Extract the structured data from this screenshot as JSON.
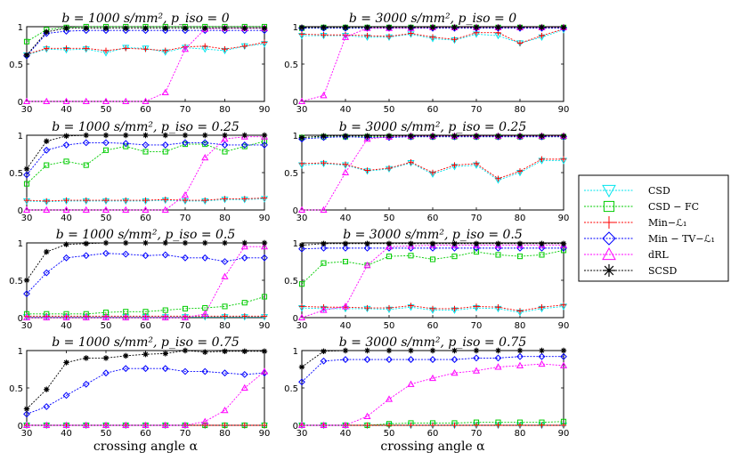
{
  "figure_legend": [
    {
      "label": "CSD",
      "color": "#00e5ee",
      "marker": "triangle-down"
    },
    {
      "label": "CSD − FC",
      "color": "#00cc00",
      "marker": "square"
    },
    {
      "label": "Min−ℒ₁",
      "color": "#ff0000",
      "marker": "plus"
    },
    {
      "label": "Min − TV−ℒ₁",
      "color": "#0000ff",
      "marker": "diamond"
    },
    {
      "label": "dRL",
      "color": "#ff00ff",
      "marker": "triangle-up"
    },
    {
      "label": "SCSD",
      "color": "#000000",
      "marker": "star"
    }
  ],
  "chart_data": [
    {
      "type": "line",
      "title": "b = 1000 s/mm², p_iso = 0",
      "xlabel": "",
      "ylabel": "",
      "xlim": [
        30,
        90
      ],
      "ylim": [
        0,
        1
      ],
      "x": [
        30,
        35,
        40,
        45,
        50,
        55,
        60,
        65,
        70,
        75,
        80,
        85,
        90
      ],
      "series": [
        {
          "name": "CSD",
          "values": [
            0.62,
            0.7,
            0.69,
            0.7,
            0.65,
            0.72,
            0.71,
            0.66,
            0.72,
            0.7,
            0.68,
            0.74,
            0.77
          ]
        },
        {
          "name": "CSD − FC",
          "values": [
            0.8,
            0.96,
            0.99,
            1.0,
            1.0,
            1.0,
            1.0,
            1.0,
            1.0,
            1.0,
            1.0,
            1.0,
            1.0
          ]
        },
        {
          "name": "Min−ℒ₁",
          "values": [
            0.63,
            0.71,
            0.71,
            0.71,
            0.68,
            0.71,
            0.7,
            0.68,
            0.73,
            0.74,
            0.7,
            0.74,
            0.79
          ]
        },
        {
          "name": "Min − TV−ℒ₁",
          "values": [
            0.61,
            0.91,
            0.94,
            0.95,
            0.95,
            0.95,
            0.95,
            0.95,
            0.95,
            0.95,
            0.95,
            0.95,
            0.95
          ]
        },
        {
          "name": "dRL",
          "values": [
            0.0,
            0.0,
            0.0,
            0.0,
            0.0,
            0.0,
            0.0,
            0.12,
            0.7,
            0.97,
            0.98,
            0.98,
            0.98
          ]
        },
        {
          "name": "SCSD",
          "values": [
            0.62,
            0.93,
            0.98,
            0.98,
            0.98,
            0.98,
            0.98,
            0.98,
            0.98,
            0.98,
            0.98,
            0.98,
            0.98
          ]
        }
      ]
    },
    {
      "type": "line",
      "title": "b = 3000 s/mm², p_iso = 0",
      "xlabel": "",
      "ylabel": "",
      "xlim": [
        30,
        90
      ],
      "ylim": [
        0,
        1
      ],
      "x": [
        30,
        35,
        40,
        45,
        50,
        55,
        60,
        65,
        70,
        75,
        80,
        85,
        90
      ],
      "series": [
        {
          "name": "CSD",
          "values": [
            0.88,
            0.88,
            0.88,
            0.86,
            0.86,
            0.9,
            0.84,
            0.82,
            0.9,
            0.88,
            0.78,
            0.86,
            0.96
          ]
        },
        {
          "name": "CSD − FC",
          "values": [
            0.98,
            0.99,
            0.99,
            0.99,
            0.99,
            0.99,
            0.99,
            0.99,
            0.99,
            0.99,
            0.99,
            0.99,
            0.99
          ]
        },
        {
          "name": "Min−ℒ₁",
          "values": [
            0.9,
            0.89,
            0.89,
            0.88,
            0.87,
            0.91,
            0.86,
            0.83,
            0.92,
            0.92,
            0.78,
            0.88,
            0.97
          ]
        },
        {
          "name": "Min − TV−ℒ₁",
          "values": [
            0.98,
            0.98,
            0.98,
            0.98,
            0.98,
            0.98,
            0.98,
            0.98,
            0.98,
            0.98,
            0.98,
            0.98,
            0.98
          ]
        },
        {
          "name": "dRL",
          "values": [
            0.0,
            0.08,
            0.86,
            0.98,
            0.98,
            0.98,
            0.99,
            0.99,
            0.99,
            0.99,
            0.99,
            0.99,
            0.99
          ]
        },
        {
          "name": "SCSD",
          "values": [
            0.99,
            0.99,
            0.99,
            0.99,
            0.99,
            0.99,
            0.99,
            0.99,
            0.99,
            0.99,
            0.99,
            0.99,
            0.99
          ]
        }
      ]
    },
    {
      "type": "line",
      "title": "b = 1000 s/mm², p_iso = 0.25",
      "xlabel": "",
      "ylabel": "",
      "xlim": [
        30,
        90
      ],
      "ylim": [
        0,
        1
      ],
      "x": [
        30,
        35,
        40,
        45,
        50,
        55,
        60,
        65,
        70,
        75,
        80,
        85,
        90
      ],
      "series": [
        {
          "name": "CSD",
          "values": [
            0.12,
            0.11,
            0.12,
            0.12,
            0.12,
            0.12,
            0.12,
            0.13,
            0.12,
            0.12,
            0.14,
            0.14,
            0.15
          ]
        },
        {
          "name": "CSD − FC",
          "values": [
            0.35,
            0.6,
            0.65,
            0.6,
            0.8,
            0.85,
            0.78,
            0.78,
            0.88,
            0.88,
            0.78,
            0.85,
            0.92
          ]
        },
        {
          "name": "Min−ℒ₁",
          "values": [
            0.13,
            0.12,
            0.13,
            0.13,
            0.13,
            0.13,
            0.13,
            0.14,
            0.13,
            0.13,
            0.15,
            0.15,
            0.16
          ]
        },
        {
          "name": "Min − TV−ℒ₁",
          "values": [
            0.47,
            0.8,
            0.87,
            0.9,
            0.9,
            0.89,
            0.87,
            0.87,
            0.9,
            0.9,
            0.87,
            0.87,
            0.87
          ]
        },
        {
          "name": "dRL",
          "values": [
            0.0,
            0.0,
            0.0,
            0.0,
            0.0,
            0.0,
            0.0,
            0.0,
            0.2,
            0.7,
            0.95,
            0.98,
            0.98
          ]
        },
        {
          "name": "SCSD",
          "values": [
            0.55,
            0.92,
            0.99,
            1.0,
            1.0,
            1.0,
            1.0,
            1.0,
            1.0,
            1.0,
            1.0,
            1.0,
            1.0
          ]
        }
      ]
    },
    {
      "type": "line",
      "title": "b = 3000 s/mm², p_iso = 0.25",
      "xlabel": "",
      "ylabel": "",
      "xlim": [
        30,
        90
      ],
      "ylim": [
        0,
        1
      ],
      "x": [
        30,
        35,
        40,
        45,
        50,
        55,
        60,
        65,
        70,
        75,
        80,
        85,
        90
      ],
      "series": [
        {
          "name": "CSD",
          "values": [
            0.6,
            0.62,
            0.6,
            0.52,
            0.55,
            0.63,
            0.48,
            0.58,
            0.6,
            0.4,
            0.5,
            0.66,
            0.66
          ]
        },
        {
          "name": "CSD − FC",
          "values": [
            0.97,
            0.98,
            0.98,
            0.98,
            0.98,
            0.98,
            0.98,
            0.98,
            0.98,
            0.98,
            0.98,
            0.98,
            0.98
          ]
        },
        {
          "name": "Min−ℒ₁",
          "values": [
            0.62,
            0.63,
            0.61,
            0.53,
            0.56,
            0.64,
            0.5,
            0.6,
            0.62,
            0.42,
            0.52,
            0.68,
            0.68
          ]
        },
        {
          "name": "Min − TV−ℒ₁",
          "values": [
            0.95,
            0.97,
            0.98,
            0.97,
            0.97,
            0.98,
            0.98,
            0.98,
            0.98,
            0.98,
            0.98,
            0.98,
            0.98
          ]
        },
        {
          "name": "dRL",
          "values": [
            0.0,
            0.0,
            0.5,
            0.95,
            0.98,
            0.99,
            0.99,
            0.99,
            0.99,
            0.99,
            0.99,
            0.99,
            0.99
          ]
        },
        {
          "name": "SCSD",
          "values": [
            0.97,
            0.99,
            0.99,
            0.99,
            0.99,
            0.99,
            0.99,
            0.99,
            0.99,
            0.99,
            0.99,
            0.99,
            0.99
          ]
        }
      ]
    },
    {
      "type": "line",
      "title": "b = 1000 s/mm², p_iso = 0.5",
      "xlabel": "",
      "ylabel": "",
      "xlim": [
        30,
        90
      ],
      "ylim": [
        0,
        1
      ],
      "x": [
        30,
        35,
        40,
        45,
        50,
        55,
        60,
        65,
        70,
        75,
        80,
        85,
        90
      ],
      "series": [
        {
          "name": "CSD",
          "values": [
            0.01,
            0.01,
            0.01,
            0.01,
            0.01,
            0.01,
            0.01,
            0.01,
            0.01,
            0.01,
            0.01,
            0.01,
            0.01
          ]
        },
        {
          "name": "CSD − FC",
          "values": [
            0.05,
            0.05,
            0.05,
            0.05,
            0.07,
            0.08,
            0.08,
            0.1,
            0.12,
            0.13,
            0.15,
            0.2,
            0.28
          ]
        },
        {
          "name": "Min−ℒ₁",
          "values": [
            0.02,
            0.02,
            0.02,
            0.02,
            0.02,
            0.02,
            0.02,
            0.02,
            0.02,
            0.02,
            0.02,
            0.02,
            0.02
          ]
        },
        {
          "name": "Min − TV−ℒ₁",
          "values": [
            0.32,
            0.6,
            0.8,
            0.83,
            0.86,
            0.85,
            0.83,
            0.84,
            0.8,
            0.8,
            0.75,
            0.8,
            0.8
          ]
        },
        {
          "name": "dRL",
          "values": [
            0.0,
            0.0,
            0.0,
            0.0,
            0.0,
            0.0,
            0.0,
            0.0,
            0.0,
            0.05,
            0.55,
            0.95,
            0.95
          ]
        },
        {
          "name": "SCSD",
          "values": [
            0.5,
            0.88,
            0.98,
            0.99,
            1.0,
            1.0,
            1.0,
            1.0,
            1.0,
            1.0,
            1.0,
            1.0,
            1.0
          ]
        }
      ]
    },
    {
      "type": "line",
      "title": "b = 3000 s/mm², p_iso = 0.5",
      "xlabel": "",
      "ylabel": "",
      "xlim": [
        30,
        90
      ],
      "ylim": [
        0,
        1
      ],
      "x": [
        30,
        35,
        40,
        45,
        50,
        55,
        60,
        65,
        70,
        75,
        80,
        85,
        90
      ],
      "series": [
        {
          "name": "CSD",
          "values": [
            0.13,
            0.12,
            0.12,
            0.12,
            0.11,
            0.14,
            0.1,
            0.1,
            0.13,
            0.12,
            0.07,
            0.12,
            0.15
          ]
        },
        {
          "name": "CSD − FC",
          "values": [
            0.45,
            0.73,
            0.75,
            0.7,
            0.82,
            0.83,
            0.78,
            0.82,
            0.88,
            0.84,
            0.82,
            0.84,
            0.9
          ]
        },
        {
          "name": "Min−ℒ₁",
          "values": [
            0.15,
            0.14,
            0.14,
            0.13,
            0.13,
            0.16,
            0.12,
            0.12,
            0.15,
            0.14,
            0.09,
            0.14,
            0.17
          ]
        },
        {
          "name": "Min − TV−ℒ₁",
          "values": [
            0.92,
            0.93,
            0.93,
            0.93,
            0.93,
            0.93,
            0.93,
            0.93,
            0.93,
            0.93,
            0.93,
            0.93,
            0.93
          ]
        },
        {
          "name": "dRL",
          "values": [
            0.0,
            0.1,
            0.15,
            0.7,
            0.95,
            0.96,
            0.97,
            0.97,
            0.97,
            0.97,
            0.97,
            0.97,
            0.97
          ]
        },
        {
          "name": "SCSD",
          "values": [
            0.97,
            0.99,
            0.99,
            0.99,
            0.99,
            0.99,
            0.99,
            0.99,
            0.99,
            0.99,
            0.99,
            0.99,
            0.99
          ]
        }
      ]
    },
    {
      "type": "line",
      "title": "b = 1000 s/mm², p_iso = 0.75",
      "xlabel": "crossing angle α",
      "ylabel": "",
      "xlim": [
        30,
        90
      ],
      "ylim": [
        0,
        1
      ],
      "x": [
        30,
        35,
        40,
        45,
        50,
        55,
        60,
        65,
        70,
        75,
        80,
        85,
        90
      ],
      "series": [
        {
          "name": "CSD",
          "values": [
            0.0,
            0.0,
            0.0,
            0.0,
            0.0,
            0.0,
            0.0,
            0.0,
            0.0,
            0.0,
            0.0,
            0.0,
            0.0
          ]
        },
        {
          "name": "CSD − FC",
          "values": [
            0.0,
            0.0,
            0.0,
            0.0,
            0.0,
            0.0,
            0.0,
            0.0,
            0.0,
            0.0,
            0.0,
            0.0,
            0.0
          ]
        },
        {
          "name": "Min−ℒ₁",
          "values": [
            0.0,
            0.0,
            0.0,
            0.0,
            0.0,
            0.0,
            0.0,
            0.0,
            0.0,
            0.0,
            0.0,
            0.0,
            0.0
          ]
        },
        {
          "name": "Min − TV−ℒ₁",
          "values": [
            0.15,
            0.25,
            0.4,
            0.55,
            0.7,
            0.76,
            0.76,
            0.76,
            0.72,
            0.72,
            0.7,
            0.68,
            0.7
          ]
        },
        {
          "name": "dRL",
          "values": [
            0.0,
            0.0,
            0.0,
            0.0,
            0.0,
            0.0,
            0.0,
            0.0,
            0.0,
            0.05,
            0.2,
            0.5,
            0.72
          ]
        },
        {
          "name": "SCSD",
          "values": [
            0.22,
            0.48,
            0.84,
            0.9,
            0.9,
            0.93,
            0.95,
            0.96,
            1.0,
            0.98,
            0.99,
            0.99,
            0.99
          ]
        }
      ]
    },
    {
      "type": "line",
      "title": "b = 3000 s/mm², p_iso = 0.75",
      "xlabel": "crossing angle α",
      "ylabel": "",
      "xlim": [
        30,
        90
      ],
      "ylim": [
        0,
        1
      ],
      "x": [
        30,
        35,
        40,
        45,
        50,
        55,
        60,
        65,
        70,
        75,
        80,
        85,
        90
      ],
      "series": [
        {
          "name": "CSD",
          "values": [
            0.0,
            0.0,
            0.0,
            0.0,
            0.0,
            0.0,
            0.0,
            0.0,
            0.0,
            0.0,
            0.0,
            0.0,
            0.0
          ]
        },
        {
          "name": "CSD − FC",
          "values": [
            0.0,
            0.0,
            0.0,
            0.0,
            0.02,
            0.03,
            0.03,
            0.03,
            0.04,
            0.04,
            0.04,
            0.04,
            0.05
          ]
        },
        {
          "name": "Min−ℒ₁",
          "values": [
            0.0,
            0.0,
            0.0,
            0.0,
            0.0,
            0.0,
            0.0,
            0.0,
            0.0,
            0.0,
            0.0,
            0.0,
            0.0
          ]
        },
        {
          "name": "Min − TV−ℒ₁",
          "values": [
            0.58,
            0.86,
            0.88,
            0.88,
            0.88,
            0.88,
            0.88,
            0.88,
            0.9,
            0.9,
            0.92,
            0.92,
            0.92
          ]
        },
        {
          "name": "dRL",
          "values": [
            0.0,
            0.0,
            0.0,
            0.12,
            0.35,
            0.55,
            0.63,
            0.7,
            0.73,
            0.78,
            0.8,
            0.82,
            0.8
          ]
        },
        {
          "name": "SCSD",
          "values": [
            0.78,
            0.99,
            1.0,
            1.0,
            1.0,
            1.0,
            1.0,
            1.0,
            1.0,
            1.0,
            1.0,
            1.0,
            1.0
          ]
        }
      ]
    }
  ]
}
